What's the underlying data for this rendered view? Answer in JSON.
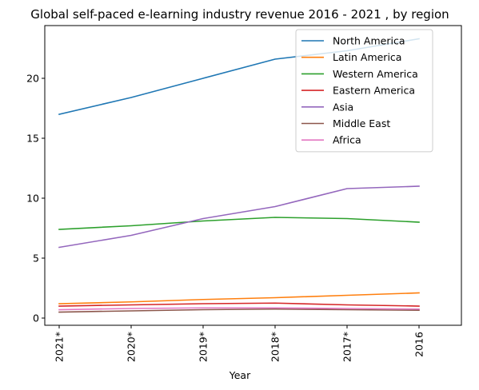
{
  "chart_data": {
    "type": "line",
    "title": "Global self-paced e-learning industry revenue 2016 - 2021 , by region",
    "xlabel": "Year",
    "ylabel": "",
    "categories": [
      "2021*",
      "2020*",
      "2019*",
      "2018*",
      "2017*",
      "2016"
    ],
    "ylim": [
      -0.6,
      24.4
    ],
    "yticks": [
      0,
      5,
      10,
      15,
      20
    ],
    "grid": false,
    "legend_position": "top-right",
    "series": [
      {
        "name": "North America",
        "color": "#1f77b4",
        "values": [
          17.0,
          18.4,
          20.0,
          21.6,
          22.3,
          23.3
        ]
      },
      {
        "name": "Latin America",
        "color": "#ff7f0e",
        "values": [
          1.2,
          1.35,
          1.55,
          1.7,
          1.9,
          2.1
        ]
      },
      {
        "name": "Western America",
        "color": "#2ca02c",
        "values": [
          7.4,
          7.7,
          8.1,
          8.4,
          8.3,
          8.0
        ]
      },
      {
        "name": "Eastern America",
        "color": "#d62728",
        "values": [
          1.0,
          1.1,
          1.2,
          1.25,
          1.1,
          1.0
        ]
      },
      {
        "name": "Asia",
        "color": "#9467bd",
        "values": [
          5.9,
          6.9,
          8.3,
          9.3,
          10.8,
          11.0
        ]
      },
      {
        "name": "Middle East",
        "color": "#8c564b",
        "values": [
          0.5,
          0.6,
          0.7,
          0.75,
          0.7,
          0.65
        ]
      },
      {
        "name": "Africa",
        "color": "#e377c2",
        "values": [
          0.7,
          0.8,
          0.85,
          0.85,
          0.8,
          0.75
        ]
      }
    ]
  }
}
